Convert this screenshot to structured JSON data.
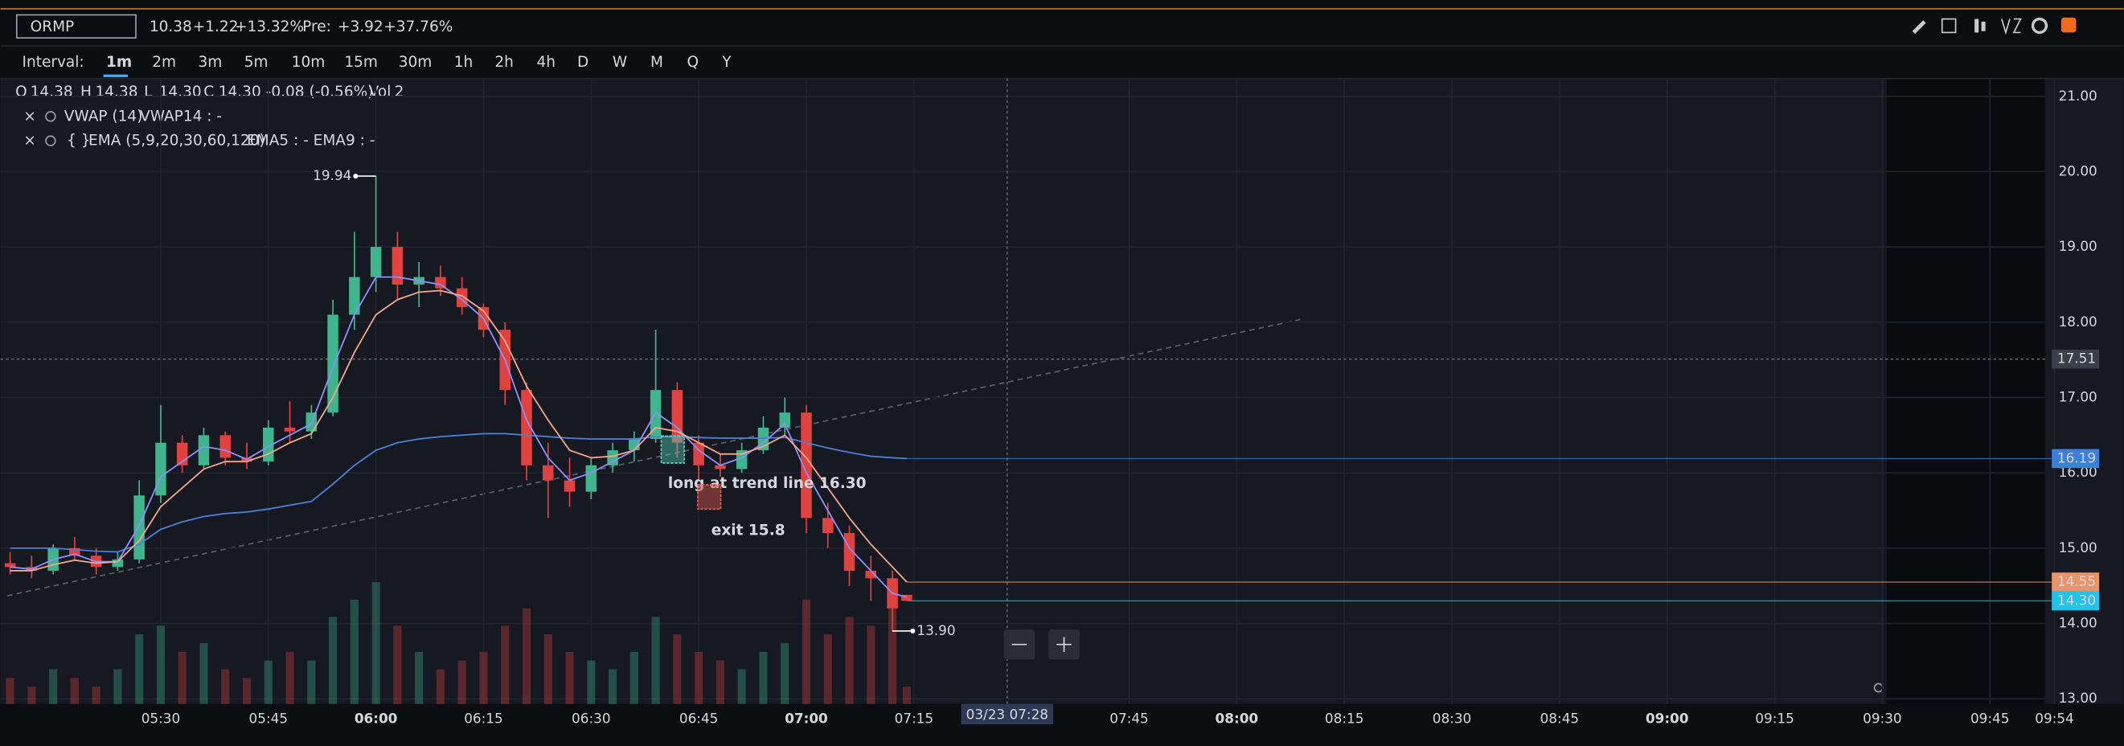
{
  "toolbar": {
    "symbol": "ORMP",
    "quote": "10.38",
    "change": "+1.22",
    "change_pct": "+13.32%",
    "pre_label": "Pre:",
    "pre_change": "+3.92",
    "pre_pct": "+37.76%"
  },
  "intervals": {
    "label": "Interval:",
    "options": [
      "1m",
      "2m",
      "3m",
      "5m",
      "10m",
      "15m",
      "30m",
      "1h",
      "2h",
      "4h",
      "D",
      "W",
      "M",
      "Q",
      "Y"
    ],
    "selected": 0
  },
  "legend": {
    "ohlc": [
      {
        "label": "O",
        "value": "14.38"
      },
      {
        "label": "H",
        "value": "14.38"
      },
      {
        "label": "L",
        "value": "14.30"
      },
      {
        "label": "C",
        "value": "14.30"
      }
    ],
    "change": "-0.08 (-0.56%)",
    "vol_label": "Vol",
    "vol": "2"
  },
  "indicators": [
    {
      "name": "VWAP (14)",
      "readouts": [
        "VWAP14 : -"
      ]
    },
    {
      "prefix": "{ }",
      "name": "EMA (5,9,20,30,60,120)",
      "readouts": [
        "EMA5 : -",
        "EMA9 : -"
      ]
    }
  ],
  "chart_data": {
    "type": "candlestick",
    "x": [
      309,
      312,
      315,
      318,
      321,
      324,
      327,
      330,
      333,
      336,
      339,
      342,
      345,
      348,
      351,
      354,
      357,
      360,
      363,
      366,
      369,
      372,
      375,
      378,
      381,
      384,
      387,
      390,
      393,
      396,
      399,
      402,
      405,
      408,
      411,
      414,
      417,
      420,
      423,
      426,
      429,
      432,
      434
    ],
    "open": [
      14.8,
      14.75,
      14.7,
      15.0,
      14.9,
      14.75,
      14.85,
      15.7,
      16.4,
      16.1,
      16.5,
      16.2,
      16.15,
      16.6,
      16.55,
      16.8,
      18.1,
      18.6,
      19.0,
      18.5,
      18.6,
      18.45,
      18.2,
      17.9,
      17.1,
      16.1,
      15.9,
      15.75,
      16.1,
      16.3,
      16.45,
      17.1,
      16.4,
      16.1,
      16.05,
      16.3,
      16.6,
      16.8,
      15.4,
      15.2,
      14.7,
      14.6,
      14.38
    ],
    "high": [
      14.95,
      14.9,
      15.05,
      15.15,
      15.0,
      14.95,
      15.9,
      16.9,
      16.5,
      16.6,
      16.55,
      16.4,
      16.7,
      16.95,
      16.9,
      18.3,
      19.2,
      19.94,
      19.2,
      18.8,
      18.75,
      18.6,
      18.25,
      18.0,
      17.2,
      16.4,
      16.2,
      16.2,
      16.4,
      16.55,
      17.9,
      17.2,
      16.5,
      16.25,
      16.4,
      16.75,
      17.0,
      16.9,
      15.6,
      15.3,
      14.9,
      14.7,
      14.38
    ],
    "low": [
      14.65,
      14.6,
      14.65,
      14.85,
      14.65,
      14.7,
      14.8,
      15.6,
      16.0,
      16.05,
      16.1,
      16.05,
      16.1,
      16.4,
      16.45,
      16.75,
      17.9,
      18.4,
      18.3,
      18.2,
      18.35,
      18.1,
      17.8,
      16.9,
      15.9,
      15.4,
      15.55,
      15.65,
      16.0,
      16.15,
      16.4,
      16.2,
      15.9,
      15.95,
      16.0,
      16.25,
      16.5,
      15.2,
      15.0,
      14.5,
      14.3,
      13.9,
      14.3
    ],
    "close": [
      14.75,
      14.7,
      15.0,
      14.9,
      14.75,
      14.85,
      15.7,
      16.4,
      16.1,
      16.5,
      16.2,
      16.15,
      16.6,
      16.55,
      16.8,
      18.1,
      18.6,
      19.0,
      18.5,
      18.6,
      18.45,
      18.2,
      17.9,
      17.1,
      16.1,
      15.9,
      15.75,
      16.1,
      16.3,
      16.45,
      17.1,
      16.4,
      16.1,
      16.05,
      16.3,
      16.6,
      16.8,
      15.4,
      15.2,
      14.7,
      14.6,
      14.2,
      14.3
    ],
    "volume": [
      3,
      2,
      4,
      3,
      2,
      4,
      8,
      9,
      6,
      7,
      4,
      3,
      5,
      6,
      5,
      10,
      12,
      14,
      9,
      6,
      4,
      5,
      6,
      9,
      11,
      8,
      6,
      5,
      4,
      6,
      10,
      8,
      6,
      5,
      4,
      6,
      7,
      12,
      8,
      10,
      9,
      11,
      2
    ],
    "series": [
      {
        "color": "#4a7fd4",
        "values": [
          15.0,
          15.0,
          15.0,
          14.98,
          14.96,
          14.95,
          15.05,
          15.25,
          15.35,
          15.42,
          15.46,
          15.48,
          15.52,
          15.57,
          15.62,
          15.85,
          16.1,
          16.3,
          16.4,
          16.45,
          16.48,
          16.5,
          16.52,
          16.52,
          16.5,
          16.48,
          16.46,
          16.45,
          16.45,
          16.45,
          16.48,
          16.48,
          16.47,
          16.46,
          16.46,
          16.46,
          16.47,
          16.4,
          16.33,
          16.27,
          16.22,
          16.2,
          16.19
        ]
      },
      {
        "color": "#8e8ef7",
        "values": [
          14.75,
          14.72,
          14.85,
          14.92,
          14.82,
          14.82,
          15.3,
          15.95,
          16.15,
          16.35,
          16.3,
          16.18,
          16.35,
          16.5,
          16.65,
          17.4,
          18.1,
          18.6,
          18.6,
          18.55,
          18.5,
          18.3,
          18.05,
          17.5,
          16.7,
          16.2,
          15.9,
          16.0,
          16.15,
          16.3,
          16.8,
          16.6,
          16.3,
          16.1,
          16.2,
          16.4,
          16.65,
          16.0,
          15.5,
          15.0,
          14.7,
          14.4,
          14.35
        ]
      },
      {
        "color": "#f0a58a",
        "values": [
          14.7,
          14.7,
          14.78,
          14.84,
          14.8,
          14.82,
          15.1,
          15.55,
          15.8,
          16.05,
          16.15,
          16.15,
          16.25,
          16.4,
          16.52,
          17.0,
          17.6,
          18.1,
          18.3,
          18.4,
          18.42,
          18.35,
          18.15,
          17.75,
          17.15,
          16.7,
          16.3,
          16.2,
          16.22,
          16.3,
          16.6,
          16.55,
          16.4,
          16.25,
          16.25,
          16.35,
          16.5,
          16.2,
          15.8,
          15.4,
          15.05,
          14.75,
          14.55
        ]
      }
    ],
    "up_color": "#3fb58d",
    "down_color": "#e0433f",
    "xlim": [
      308.6,
      594
    ],
    "xticks": [
      {
        "value": 330,
        "label": "05:30"
      },
      {
        "value": 345,
        "label": "05:45"
      },
      {
        "value": 360,
        "label": "06:00"
      },
      {
        "value": 375,
        "label": "06:15"
      },
      {
        "value": 390,
        "label": "06:30"
      },
      {
        "value": 405,
        "label": "06:45"
      },
      {
        "value": 420,
        "label": "07:00"
      },
      {
        "value": 435,
        "label": "07:15"
      },
      {
        "value": 465,
        "label": "07:45"
      },
      {
        "value": 480,
        "label": "08:00"
      },
      {
        "value": 495,
        "label": "08:15"
      },
      {
        "value": 510,
        "label": "08:30"
      },
      {
        "value": 525,
        "label": "08:45"
      },
      {
        "value": 540,
        "label": "09:00"
      },
      {
        "value": 555,
        "label": "09:15"
      },
      {
        "value": 570,
        "label": "09:30"
      },
      {
        "value": 585,
        "label": "09:45"
      },
      {
        "value": 594,
        "label": "09:54"
      }
    ],
    "ylim": [
      12.93,
      21.2
    ],
    "yticks": [
      {
        "value": 13,
        "label": "13.00"
      },
      {
        "value": 14,
        "label": "14.00"
      },
      {
        "value": 15,
        "label": "15.00"
      },
      {
        "value": 16,
        "label": "16.00"
      },
      {
        "value": 17,
        "label": "17.00"
      },
      {
        "value": 18,
        "label": "18.00"
      },
      {
        "value": 19,
        "label": "19.00"
      },
      {
        "value": 20,
        "label": "20.00"
      },
      {
        "value": 21,
        "label": "21.00"
      }
    ],
    "grid": true,
    "high_label": {
      "value": 19.94,
      "label": "19.94"
    },
    "low_label": {
      "value": 13.9,
      "label": "13.90"
    },
    "price_labels": [
      {
        "value": 16.19,
        "label": "16.19",
        "color": "#3d7fd9"
      },
      {
        "value": 14.55,
        "label": "14.55",
        "color": "#e8956b"
      },
      {
        "value": 14.3,
        "label": "14.30",
        "color": "#22c3e6"
      }
    ],
    "crosshair": {
      "x": {
        "value": 448,
        "label": "03/23 07:28"
      },
      "y": {
        "value": 17.51,
        "label": "17.51"
      }
    },
    "annotations": [
      "long at trend line 16.30",
      "exit 15.8"
    ]
  }
}
